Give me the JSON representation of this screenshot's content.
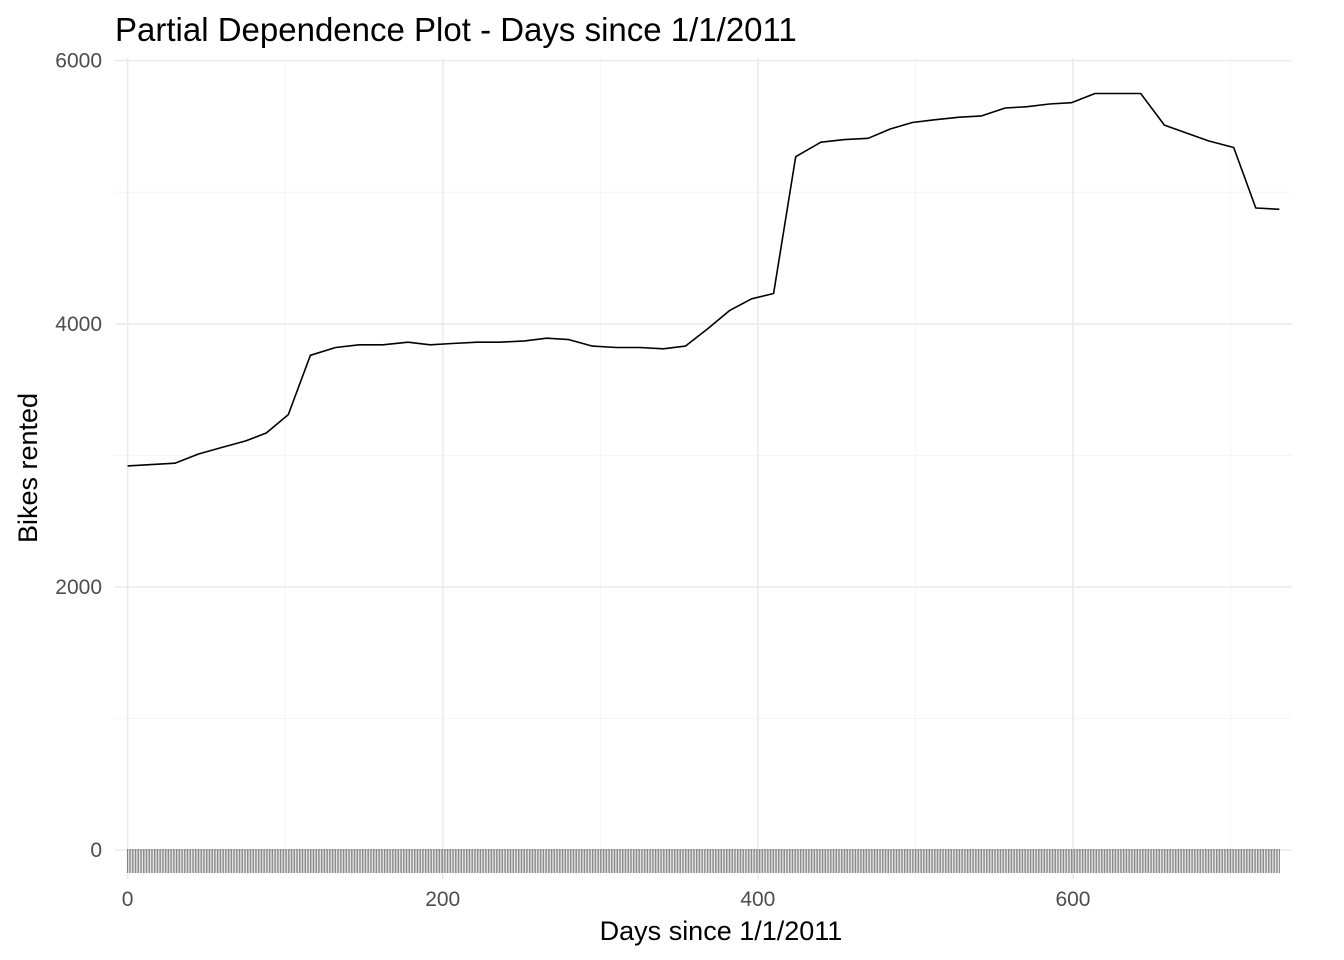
{
  "chart_data": {
    "type": "line",
    "title": "Partial Dependence Plot - Days since 1/1/2011",
    "xlabel": "Days since 1/1/2011",
    "ylabel": "Bikes rented",
    "xlim": [
      -8,
      739
    ],
    "ylim": [
      -220,
      6020
    ],
    "x_ticks": [
      0,
      200,
      400,
      600
    ],
    "x_minor_ticks": [
      100,
      300,
      500,
      700
    ],
    "y_ticks": [
      0,
      2000,
      4000,
      6000
    ],
    "y_minor_ticks": [
      1000,
      3000,
      5000
    ],
    "grid": true,
    "legend": "none",
    "colors": {
      "line": "#000000",
      "grid_major": "#ebebeb",
      "grid_minor": "#f5f5f5",
      "rug": "#000000",
      "tick_label": "#4d4d4d"
    },
    "series": [
      {
        "x": [
          0,
          15,
          30,
          45,
          60,
          75,
          88,
          102,
          116,
          132,
          147,
          162,
          178,
          192,
          206,
          222,
          236,
          252,
          266,
          280,
          295,
          310,
          325,
          340,
          354,
          368,
          382,
          396,
          410,
          424,
          440,
          455,
          470,
          484,
          498,
          512,
          528,
          542,
          557,
          571,
          585,
          599,
          614,
          628,
          643,
          658,
          672,
          686,
          702,
          716,
          731
        ],
        "values": [
          2920,
          2930,
          2940,
          3010,
          3060,
          3110,
          3170,
          3310,
          3760,
          3820,
          3840,
          3840,
          3860,
          3840,
          3850,
          3860,
          3860,
          3870,
          3890,
          3880,
          3830,
          3820,
          3820,
          3810,
          3830,
          3960,
          4100,
          4190,
          4230,
          5270,
          5380,
          5400,
          5410,
          5480,
          5530,
          5550,
          5570,
          5580,
          5640,
          5650,
          5670,
          5680,
          5750,
          5750,
          5750,
          5510,
          5450,
          5390,
          5340,
          4880,
          4870
        ]
      }
    ],
    "rug": {
      "x_min": 0,
      "x_max": 731,
      "step": 1
    }
  }
}
